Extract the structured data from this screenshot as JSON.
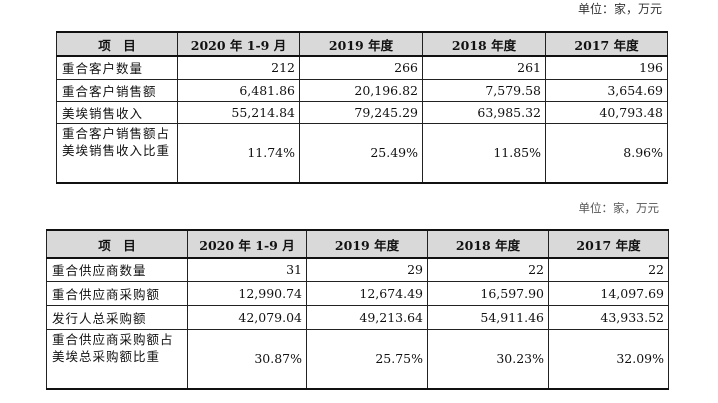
{
  "table1": {
    "unit": "单位：家，万元",
    "headers": [
      "项　目",
      "2020 年 1-9 月",
      "2019 年度",
      "2018 年度",
      "2017 年度"
    ],
    "rows": [
      [
        "重合客户数量",
        "212",
        "266",
        "261",
        "196"
      ],
      [
        "重合客户销售额",
        "6,481.86",
        "20,196.82",
        "7,579.58",
        "3,654.69"
      ],
      [
        "美埃销售收入",
        "55,214.84",
        "79,245.29",
        "63,985.32",
        "40,793.48"
      ],
      [
        "重合客户销售额占美埃销售收入比重",
        "11.74%",
        "25.49%",
        "11.85%",
        "8.96%"
      ]
    ]
  },
  "table2": {
    "unit": "单位：家，万元",
    "headers": [
      "项　目",
      "2020 年 1-9 月",
      "2019 年度",
      "2018 年度",
      "2017 年度"
    ],
    "rows": [
      [
        "重合供应商数量",
        "31",
        "29",
        "22",
        "22"
      ],
      [
        "重合供应商采购额",
        "12,990.74",
        "12,674.49",
        "16,597.90",
        "14,097.69"
      ],
      [
        "发行人总采购额",
        "42,079.04",
        "49,213.64",
        "54,911.46",
        "43,933.52"
      ],
      [
        "重合供应商采购额占美埃总采购额比重",
        "30.87%",
        "25.75%",
        "30.23%",
        "32.09%"
      ]
    ]
  }
}
